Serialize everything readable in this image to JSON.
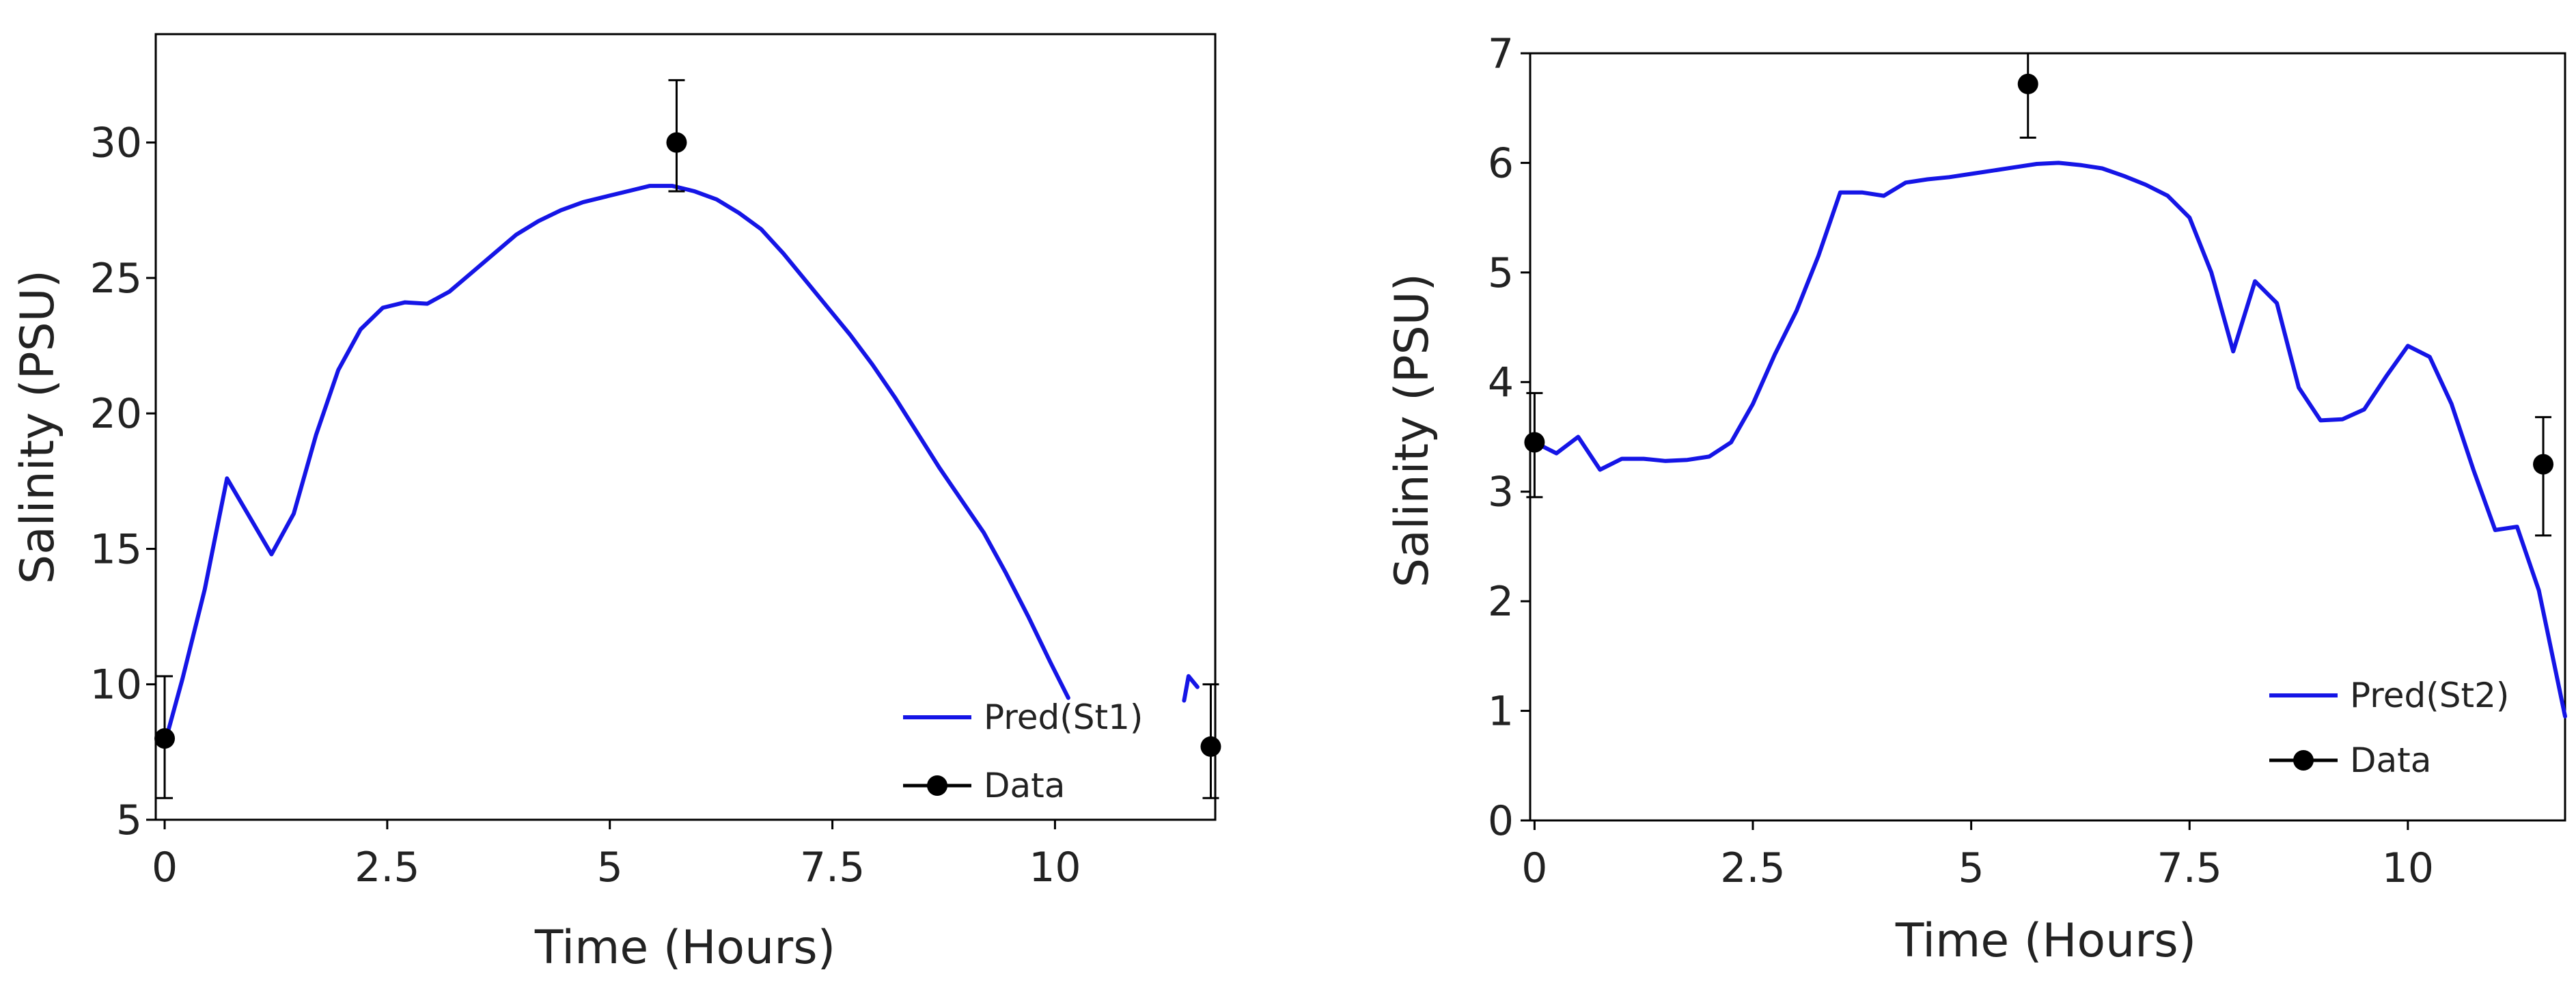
{
  "colors": {
    "prediction": "#1515e6",
    "data": "#000000",
    "axis": "#000000"
  },
  "chart_data": [
    {
      "type": "line",
      "xlabel": "Time (Hours)",
      "ylabel": "Salinity (PSU)",
      "xlim": [
        -0.1,
        11.8
      ],
      "ylim": [
        5,
        34
      ],
      "xticks": [
        0,
        2.5,
        5,
        7.5,
        10
      ],
      "xtick_labels": [
        "0",
        "2.5",
        "5",
        "7.5",
        "10"
      ],
      "yticks": [
        5,
        10,
        15,
        20,
        25,
        30
      ],
      "ytick_labels": [
        "5",
        "10",
        "15",
        "20",
        "25",
        "30"
      ],
      "legend_position": "bottom-right",
      "series": [
        {
          "name": "Pred(St1)",
          "kind": "line",
          "x": [
            0,
            0.2,
            0.45,
            0.7,
            0.95,
            1.2,
            1.45,
            1.7,
            1.95,
            2.2,
            2.45,
            2.7,
            2.95,
            3.2,
            3.45,
            3.7,
            3.95,
            4.2,
            4.45,
            4.7,
            4.95,
            5.2,
            5.45,
            5.7,
            5.95,
            6.2,
            6.45,
            6.7,
            6.95,
            7.2,
            7.45,
            7.7,
            7.95,
            8.2,
            8.45,
            8.7,
            8.95,
            9.2,
            9.45,
            9.7,
            9.95,
            10.15
          ],
          "y": [
            7.8,
            10.2,
            13.5,
            17.6,
            16.2,
            14.8,
            16.3,
            19.2,
            21.6,
            23.1,
            23.9,
            24.1,
            24.05,
            24.5,
            25.2,
            25.9,
            26.6,
            27.1,
            27.5,
            27.8,
            28.0,
            28.2,
            28.4,
            28.4,
            28.2,
            27.9,
            27.4,
            26.8,
            25.9,
            24.9,
            23.9,
            22.9,
            21.8,
            20.6,
            19.3,
            18.0,
            16.8,
            15.6,
            14.1,
            12.5,
            10.8,
            9.5
          ]
        },
        {
          "name": "Pred(St1)",
          "kind": "line",
          "x": [
            11.45,
            11.5,
            11.6
          ],
          "y": [
            9.4,
            10.3,
            9.9
          ]
        },
        {
          "name": "Data",
          "kind": "points",
          "x": [
            0,
            5.75,
            11.75
          ],
          "y": [
            8.0,
            30.0,
            7.7
          ],
          "err_low": [
            5.8,
            28.2,
            5.8
          ],
          "err_high": [
            10.3,
            32.3,
            10.0
          ]
        }
      ]
    },
    {
      "type": "line",
      "xlabel": "Time (Hours)",
      "ylabel": "Salinity (PSU)",
      "xlim": [
        -0.05,
        11.8
      ],
      "ylim": [
        0,
        7
      ],
      "xticks": [
        0,
        2.5,
        5,
        7.5,
        10
      ],
      "xtick_labels": [
        "0",
        "2.5",
        "5",
        "7.5",
        "10"
      ],
      "yticks": [
        0,
        1,
        2,
        3,
        4,
        5,
        6,
        7
      ],
      "ytick_labels": [
        "0",
        "1",
        "2",
        "3",
        "4",
        "5",
        "6",
        "7"
      ],
      "legend_position": "bottom-right",
      "series": [
        {
          "name": "Pred(St2)",
          "kind": "line",
          "x": [
            0,
            0.25,
            0.5,
            0.75,
            1.0,
            1.25,
            1.5,
            1.75,
            2.0,
            2.25,
            2.5,
            2.75,
            3.0,
            3.25,
            3.5,
            3.75,
            4.0,
            4.25,
            4.5,
            4.75,
            5.0,
            5.25,
            5.5,
            5.75,
            6.0,
            6.25,
            6.5,
            6.75,
            7.0,
            7.25,
            7.5,
            7.75,
            8.0,
            8.25,
            8.5,
            8.75,
            9.0,
            9.25,
            9.5,
            9.75,
            10.0,
            10.25,
            10.5,
            10.75,
            11.0,
            11.25,
            11.5,
            11.8
          ],
          "y": [
            3.45,
            3.35,
            3.5,
            3.2,
            3.3,
            3.3,
            3.28,
            3.29,
            3.32,
            3.45,
            3.8,
            4.25,
            4.65,
            5.15,
            5.73,
            5.73,
            5.7,
            5.82,
            5.85,
            5.87,
            5.9,
            5.93,
            5.96,
            5.99,
            6.0,
            5.98,
            5.95,
            5.88,
            5.8,
            5.7,
            5.5,
            5.0,
            4.28,
            4.92,
            4.72,
            3.95,
            3.65,
            3.66,
            3.75,
            4.05,
            4.33,
            4.23,
            3.8,
            3.2,
            2.65,
            2.68,
            2.1,
            0.95
          ]
        },
        {
          "name": "Data",
          "kind": "points",
          "x": [
            0,
            5.65,
            11.55
          ],
          "y": [
            3.45,
            6.72,
            3.25
          ],
          "err_low": [
            2.95,
            6.23,
            2.6
          ],
          "err_high": [
            3.9,
            7.0,
            3.68
          ]
        }
      ]
    }
  ]
}
